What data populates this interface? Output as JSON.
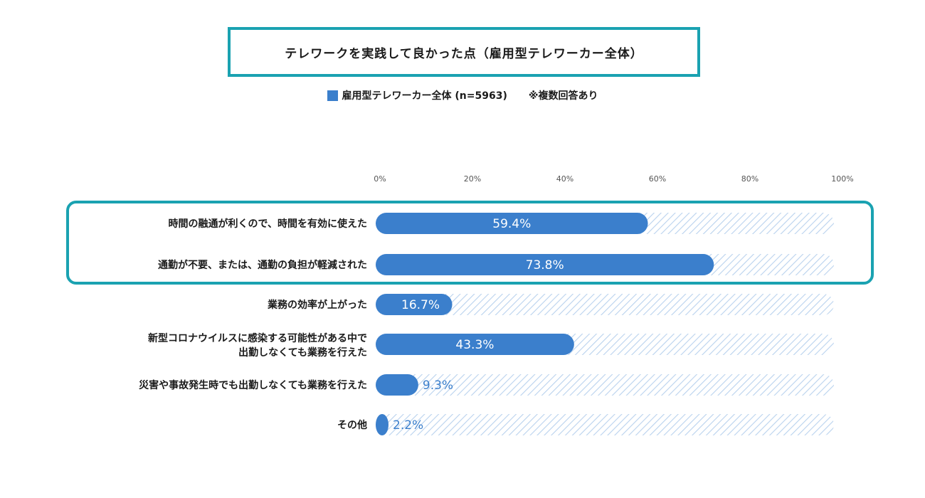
{
  "title": "テレワークを実践して良かった点（雇用型テレワーカー全体）",
  "legend": {
    "label": "雇用型テレワーカー全体 (n=5963)",
    "note": "※複数回答あり"
  },
  "colors": {
    "bar": "#3b7fcc",
    "hatch": "#b9d2ee",
    "frame": "#1aa2b1"
  },
  "chart_data": {
    "type": "bar",
    "orientation": "horizontal",
    "xlim": [
      0,
      100
    ],
    "ticks": [
      "0%",
      "20%",
      "40%",
      "60%",
      "80%",
      "100%"
    ],
    "tick_values": [
      0,
      20,
      40,
      60,
      80,
      100
    ],
    "highlighted_categories": [
      0,
      1
    ],
    "categories": [
      [
        "時間の融通が利くので、時間を有効に使えた"
      ],
      [
        "通勤が不要、または、通勤の負担が軽減された"
      ],
      [
        "業務の効率が上がった"
      ],
      [
        "新型コロナウイルスに感染する可能性がある中で",
        "出勤しなくても業務を行えた"
      ],
      [
        "災害や事故発生時でも出勤しなくても業務を行えた"
      ],
      [
        "その他"
      ]
    ],
    "values": [
      59.4,
      73.8,
      16.7,
      43.3,
      9.3,
      2.2
    ],
    "value_labels": [
      "59.4%",
      "73.8%",
      "16.7%",
      "43.3%",
      "9.3%",
      "2.2%"
    ]
  }
}
